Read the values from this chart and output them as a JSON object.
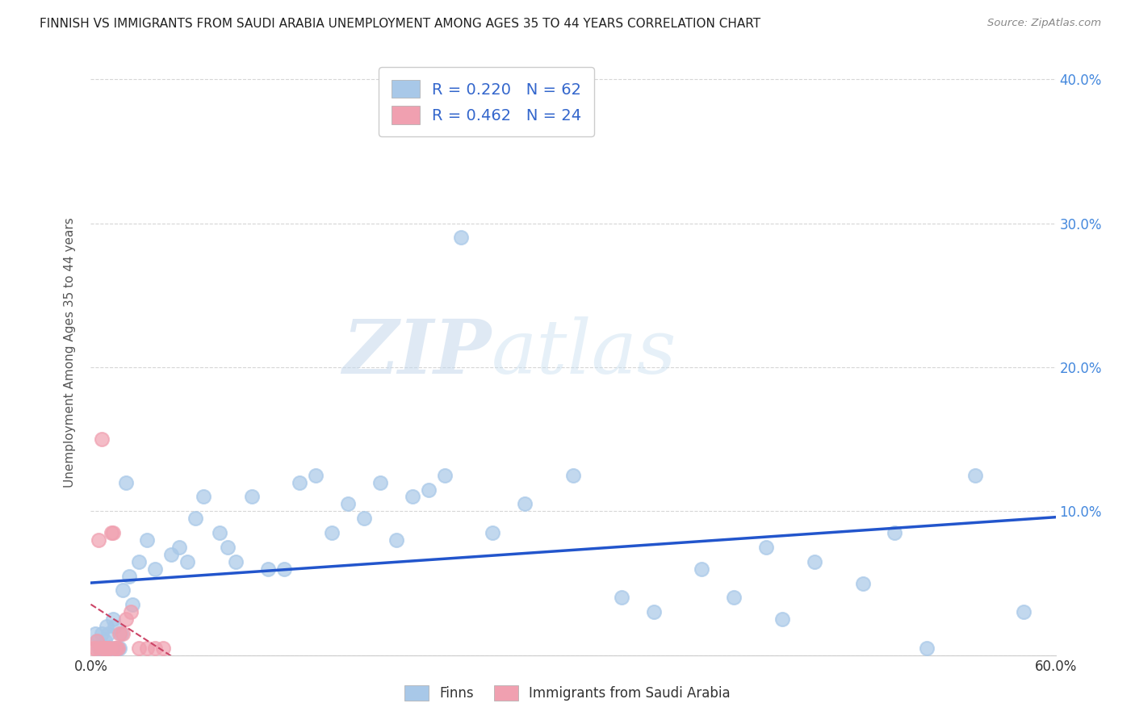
{
  "title": "FINNISH VS IMMIGRANTS FROM SAUDI ARABIA UNEMPLOYMENT AMONG AGES 35 TO 44 YEARS CORRELATION CHART",
  "source": "Source: ZipAtlas.com",
  "ylabel": "Unemployment Among Ages 35 to 44 years",
  "xlim": [
    0.0,
    0.6
  ],
  "ylim": [
    0.0,
    0.42
  ],
  "grid_color": "#cccccc",
  "background_color": "#ffffff",
  "finns_color": "#a8c8e8",
  "immigrants_color": "#f0a0b0",
  "finns_line_color": "#2255cc",
  "immigrants_line_color": "#cc4466",
  "R_finns": 0.22,
  "N_finns": 62,
  "R_immigrants": 0.462,
  "N_immigrants": 24,
  "legend_finns": "Finns",
  "legend_immigrants": "Immigrants from Saudi Arabia",
  "finns_x": [
    0.003,
    0.004,
    0.005,
    0.006,
    0.007,
    0.008,
    0.009,
    0.01,
    0.01,
    0.011,
    0.012,
    0.013,
    0.014,
    0.015,
    0.016,
    0.017,
    0.018,
    0.019,
    0.02,
    0.022,
    0.024,
    0.026,
    0.03,
    0.035,
    0.04,
    0.05,
    0.055,
    0.06,
    0.065,
    0.07,
    0.08,
    0.085,
    0.09,
    0.1,
    0.11,
    0.12,
    0.13,
    0.14,
    0.15,
    0.16,
    0.17,
    0.18,
    0.19,
    0.2,
    0.21,
    0.22,
    0.23,
    0.25,
    0.27,
    0.3,
    0.33,
    0.35,
    0.38,
    0.4,
    0.42,
    0.43,
    0.45,
    0.48,
    0.5,
    0.52,
    0.55,
    0.58
  ],
  "finns_y": [
    0.015,
    0.01,
    0.005,
    0.005,
    0.015,
    0.005,
    0.01,
    0.005,
    0.02,
    0.015,
    0.005,
    0.005,
    0.025,
    0.02,
    0.005,
    0.005,
    0.005,
    0.015,
    0.045,
    0.12,
    0.055,
    0.035,
    0.065,
    0.08,
    0.06,
    0.07,
    0.075,
    0.065,
    0.095,
    0.11,
    0.085,
    0.075,
    0.065,
    0.11,
    0.06,
    0.06,
    0.12,
    0.125,
    0.085,
    0.105,
    0.095,
    0.12,
    0.08,
    0.11,
    0.115,
    0.125,
    0.29,
    0.085,
    0.105,
    0.125,
    0.04,
    0.03,
    0.06,
    0.04,
    0.075,
    0.025,
    0.065,
    0.05,
    0.085,
    0.005,
    0.125,
    0.03
  ],
  "immigrants_x": [
    0.002,
    0.003,
    0.004,
    0.005,
    0.006,
    0.007,
    0.008,
    0.009,
    0.01,
    0.011,
    0.012,
    0.013,
    0.014,
    0.015,
    0.016,
    0.017,
    0.018,
    0.02,
    0.022,
    0.025,
    0.03,
    0.035,
    0.04,
    0.045
  ],
  "immigrants_y": [
    0.005,
    0.005,
    0.01,
    0.08,
    0.005,
    0.15,
    0.005,
    0.005,
    0.005,
    0.005,
    0.005,
    0.085,
    0.085,
    0.005,
    0.005,
    0.005,
    0.015,
    0.015,
    0.025,
    0.03,
    0.005,
    0.005,
    0.005,
    0.005
  ]
}
